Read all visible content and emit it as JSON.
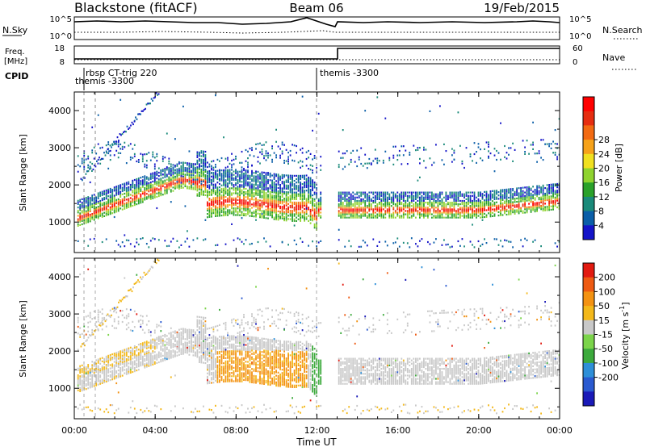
{
  "header": {
    "station": "Blackstone (fitACF)",
    "beam": "Beam 06",
    "date": "19/Feb/2015"
  },
  "noise_panel": {
    "left_label": "N.Sky",
    "right_label": "N.Search",
    "left_ticks": [
      "10^5",
      "10^0"
    ],
    "right_ticks": [
      "10^5",
      "10^0"
    ]
  },
  "freq_panel": {
    "left_label_1": "Freq.",
    "left_label_2": "[MHz]",
    "right_label": "Nave",
    "left_ticks": [
      "18",
      "8"
    ],
    "right_ticks": [
      "60",
      "0"
    ],
    "cpid_label": "CPID",
    "cpid_events": [
      {
        "text": "rbsp CT-trig 220"
      },
      {
        "text": "themis -3300"
      },
      {
        "text": "themis -3300"
      }
    ]
  },
  "chart_data": [
    {
      "type": "heatmap",
      "ylabel": "Slant Range [km]",
      "xlabel": "Time UT",
      "x_ticks": [
        "00:00",
        "04:00",
        "08:00",
        "12:00",
        "16:00",
        "20:00",
        "00:00"
      ],
      "x_range_hours": [
        0,
        24
      ],
      "y_ticks": [
        1000,
        2000,
        3000,
        4000
      ],
      "ylim": [
        180,
        4500
      ],
      "colorbar": {
        "label": "Power [dB]",
        "ticks": [
          "4",
          "8",
          "12",
          "16",
          "20",
          "24",
          "28"
        ],
        "colors": [
          "#1414c8",
          "#0a5ea8",
          "#1a8a7a",
          "#2aa12a",
          "#8fd32f",
          "#f0e020",
          "#f6a21a",
          "#f26a12",
          "#e62d10",
          "#ff0000"
        ]
      }
    },
    {
      "type": "heatmap",
      "ylabel": "Slant Range [km]",
      "xlabel": "Time UT",
      "x_ticks": [
        "00:00",
        "04:00",
        "08:00",
        "12:00",
        "16:00",
        "20:00",
        "00:00"
      ],
      "x_range_hours": [
        0,
        24
      ],
      "y_ticks": [
        1000,
        2000,
        3000,
        4000
      ],
      "ylim": [
        180,
        4500
      ],
      "colorbar": {
        "label": "Velocity [m s",
        "label_sup": "-1",
        "label_end": "]",
        "ticks": [
          "200",
          "100",
          "50",
          "15",
          "-15",
          "-50",
          "-100",
          "-200"
        ],
        "colors": [
          "#1a1ab8",
          "#2a5ad0",
          "#2e8fd8",
          "#3caa3c",
          "#7bd44a",
          "#c8c8c8",
          "#f3b81a",
          "#f39212",
          "#ee5a12",
          "#e21a10"
        ]
      }
    }
  ]
}
